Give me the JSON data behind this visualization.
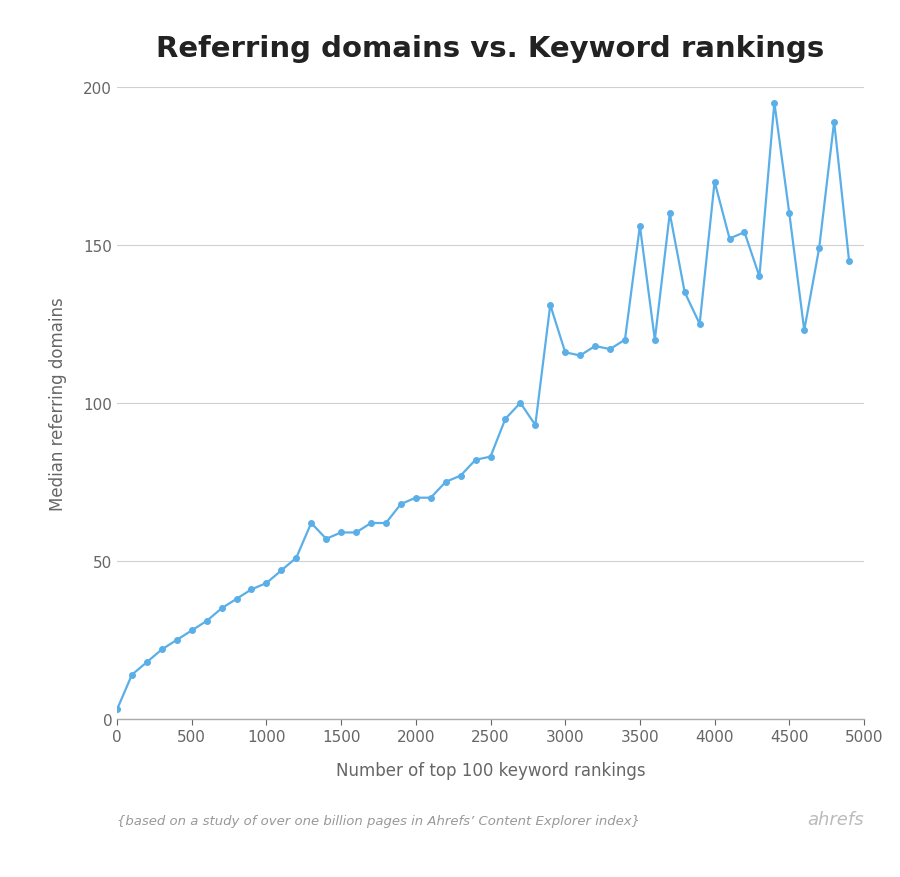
{
  "title": "Referring domains vs. Keyword rankings",
  "xlabel": "Number of top 100 keyword rankings",
  "ylabel": "Median referring domains",
  "footnote": "{based on a study of over one billion pages in Ahrefs’ Content Explorer index}",
  "branding": "ahrefs",
  "line_color": "#5aafe8",
  "marker_color": "#5aafe8",
  "background_color": "#ffffff",
  "grid_color": "#d0d0d0",
  "title_color": "#222222",
  "label_color": "#666666",
  "footnote_color": "#999999",
  "branding_color": "#bbbbbb",
  "xlim": [
    0,
    5000
  ],
  "ylim": [
    0,
    200
  ],
  "xticks": [
    0,
    500,
    1000,
    1500,
    2000,
    2500,
    3000,
    3500,
    4000,
    4500,
    5000
  ],
  "yticks": [
    0,
    50,
    100,
    150,
    200
  ],
  "x": [
    0,
    100,
    200,
    300,
    400,
    500,
    600,
    700,
    800,
    900,
    1000,
    1100,
    1200,
    1300,
    1400,
    1500,
    1600,
    1700,
    1800,
    1900,
    2000,
    2100,
    2200,
    2300,
    2400,
    2500,
    2600,
    2700,
    2800,
    2900,
    3000,
    3100,
    3200,
    3300,
    3400,
    3500,
    3600,
    3700,
    3800,
    3900,
    4000,
    4100,
    4200,
    4300,
    4400,
    4500,
    4600,
    4700,
    4800,
    4900
  ],
  "y": [
    3,
    14,
    18,
    22,
    25,
    28,
    31,
    35,
    38,
    41,
    43,
    47,
    51,
    62,
    57,
    59,
    59,
    62,
    62,
    68,
    70,
    70,
    75,
    77,
    82,
    83,
    95,
    100,
    93,
    131,
    116,
    115,
    118,
    117,
    120,
    156,
    120,
    160,
    135,
    125,
    170,
    152,
    154,
    140,
    195,
    160,
    123,
    149,
    189,
    145
  ]
}
